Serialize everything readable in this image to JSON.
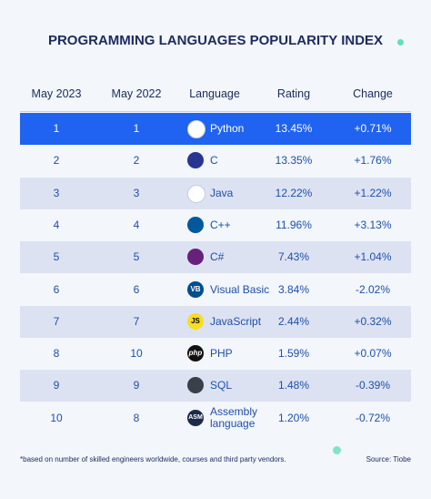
{
  "title": "PROGRAMMING LANGUAGES POPULARITY INDEX",
  "table": {
    "headers": [
      "May 2023",
      "May 2022",
      "Language",
      "Rating",
      "Change"
    ],
    "rows": [
      {
        "may_2023": "1",
        "may_2022": "1",
        "language": "Python",
        "rating": "13.45%",
        "change": "+0.71%"
      },
      {
        "may_2023": "2",
        "may_2022": "2",
        "language": "C",
        "rating": "13.35%",
        "change": "+1.76%"
      },
      {
        "may_2023": "3",
        "may_2022": "3",
        "language": "Java",
        "rating": "12.22%",
        "change": "+1.22%"
      },
      {
        "may_2023": "4",
        "may_2022": "4",
        "language": "C++",
        "rating": "11.96%",
        "change": "+3.13%"
      },
      {
        "may_2023": "5",
        "may_2022": "5",
        "language": "C#",
        "rating": "7.43%",
        "change": "+1.04%"
      },
      {
        "may_2023": "6",
        "may_2022": "6",
        "language": "Visual Basic",
        "rating": "3.84%",
        "change": "-2.02%",
        "icon": "VB"
      },
      {
        "may_2023": "7",
        "may_2022": "7",
        "language": "JavaScript",
        "rating": "2.44%",
        "change": "+0.32%",
        "icon": "JS"
      },
      {
        "may_2023": "8",
        "may_2022": "10",
        "language": "PHP",
        "rating": "1.59%",
        "change": "+0.07%",
        "icon": "php"
      },
      {
        "may_2023": "9",
        "may_2022": "9",
        "language": "SQL",
        "rating": "1.48%",
        "change": "-0.39%"
      },
      {
        "may_2023": "10",
        "may_2022": "8",
        "language": "Assembly language",
        "rating": "1.20%",
        "change": "-0.72%",
        "icon": "ASM"
      }
    ]
  },
  "footnote": "*based on number of skilled engineers worldwide, courses and third party vendors.",
  "source": "Source: Tiobe"
}
